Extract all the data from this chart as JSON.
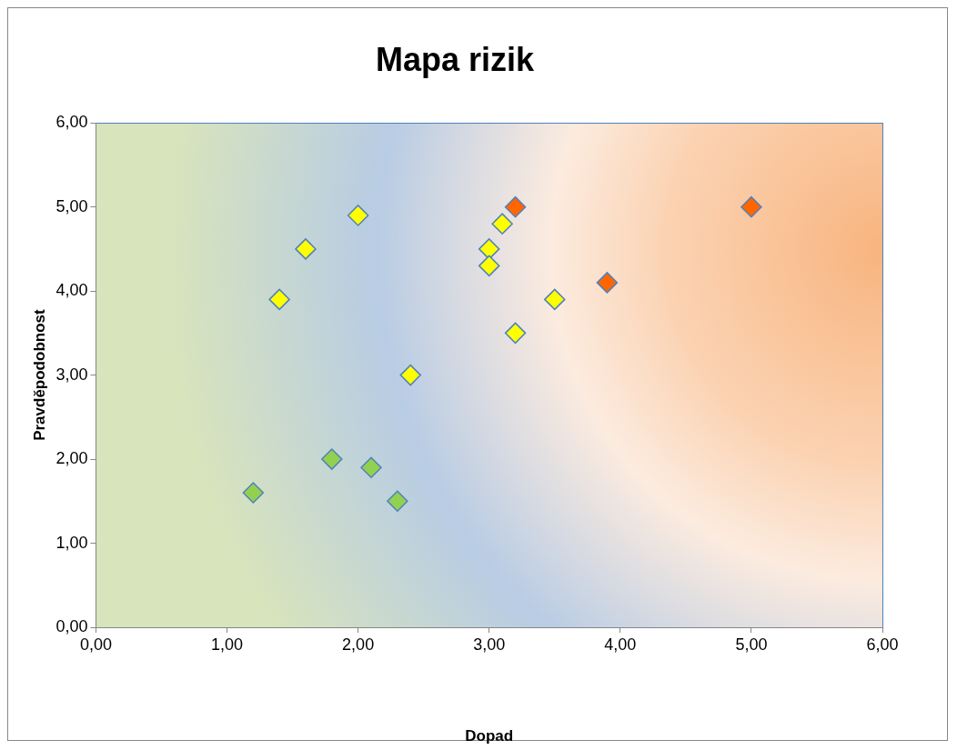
{
  "chart_data": {
    "type": "scatter",
    "title": "Mapa rizik",
    "xlabel": "Dopad",
    "ylabel": "Pravděpodobnost",
    "xlim": [
      0,
      6
    ],
    "ylim": [
      0,
      6
    ],
    "xticks": [
      {
        "value": 0,
        "label": "0,00"
      },
      {
        "value": 1,
        "label": "1,00"
      },
      {
        "value": 2,
        "label": "2,00"
      },
      {
        "value": 3,
        "label": "3,00"
      },
      {
        "value": 4,
        "label": "4,00"
      },
      {
        "value": 5,
        "label": "5,00"
      },
      {
        "value": 6,
        "label": "6,00"
      }
    ],
    "yticks": [
      {
        "value": 0,
        "label": "0,00"
      },
      {
        "value": 1,
        "label": "1,00"
      },
      {
        "value": 2,
        "label": "2,00"
      },
      {
        "value": 3,
        "label": "3,00"
      },
      {
        "value": 4,
        "label": "4,00"
      },
      {
        "value": 5,
        "label": "5,00"
      },
      {
        "value": 6,
        "label": "6,00"
      }
    ],
    "marker": "diamond",
    "legend": false,
    "grid": false,
    "series": [
      {
        "color": "#92d050",
        "x": [
          1.2,
          1.8,
          2.1,
          2.3
        ],
        "values": [
          1.6,
          2.0,
          1.9,
          1.5
        ]
      },
      {
        "color": "#ffff00",
        "x": [
          2.0,
          1.6,
          1.4,
          2.4,
          3.0,
          3.0,
          3.1,
          3.2,
          3.5
        ],
        "values": [
          4.9,
          4.5,
          3.9,
          3.0,
          4.5,
          4.3,
          4.8,
          3.5,
          3.9
        ]
      },
      {
        "color": "#ff6600",
        "x": [
          3.2,
          3.9,
          5.0
        ],
        "values": [
          5.0,
          4.1,
          5.0
        ]
      }
    ]
  }
}
